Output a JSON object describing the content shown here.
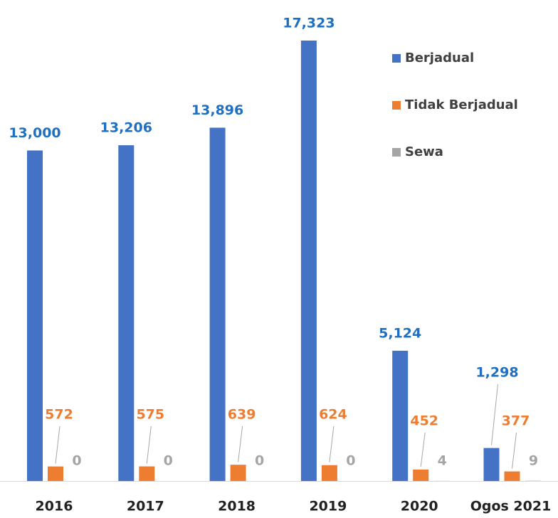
{
  "chart_data": {
    "type": "bar",
    "categories": [
      "2016",
      "2017",
      "2018",
      "2019",
      "2020",
      "Ogos 2021"
    ],
    "series": [
      {
        "name": "Berjadual",
        "color": "#4472c4",
        "label_color": "#1f70c1",
        "values": [
          13000,
          13206,
          13896,
          17323,
          5124,
          1298
        ],
        "value_labels": [
          "13,000",
          "13,206",
          "13,896",
          "17,323",
          "5,124",
          "1,298"
        ]
      },
      {
        "name": "Tidak Berjadual",
        "color": "#ed7d31",
        "label_color": "#ed7d31",
        "values": [
          572,
          575,
          639,
          624,
          452,
          377
        ]
      },
      {
        "name": "Sewa",
        "color": "#a5a5a5",
        "label_color": "#a5a5a5",
        "values": [
          0,
          0,
          0,
          0,
          4,
          9
        ]
      }
    ],
    "legend": "right"
  }
}
